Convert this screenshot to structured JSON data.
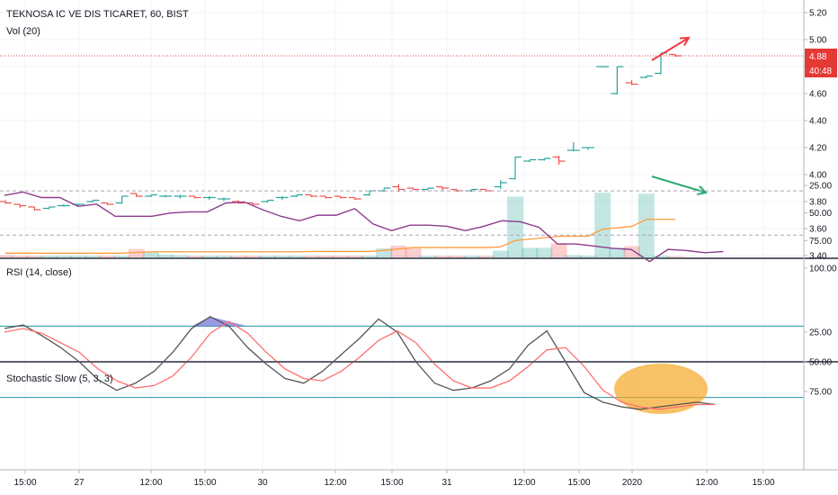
{
  "symbol_title": "TEKNOSA IC VE DIS TICARET, 60, BIST",
  "vol_label": "Vol (20)",
  "rsi_label": "RSI (14, close)",
  "stoch_label": "Stochastic Slow (5, 3, 3)",
  "last_price_tag": "4.88",
  "countdown_tag": "40:48",
  "colors": {
    "up": "#26a69a",
    "down": "#ef5350",
    "rsi_line": "#8e3c8e",
    "rsi_band": "#f3e5f8",
    "stoch_k": "#555555",
    "stoch_d": "#ff6f6f",
    "stoch_level": "#2196a6",
    "vol_ma": "#ff9c3a",
    "price_line": "#e53935",
    "annot_red": "#f03a45",
    "annot_green": "#2eaa6e",
    "highlight": "#f6a623"
  },
  "chart_data": [
    {
      "type": "candlestick",
      "title": "TEKNOSA IC VE DIS TICARET, 60, BIST",
      "ylim": [
        3.4,
        5.25
      ],
      "y_ticks": [
        "5.20",
        "5.00",
        "4.80",
        "4.60",
        "4.40",
        "4.20",
        "4.00",
        "3.80",
        "3.60",
        "3.40"
      ],
      "x_ticks": [
        "15:00",
        "27",
        "12:00",
        "15:00",
        "30",
        "12:00",
        "15:00",
        "31",
        "12:00",
        "15:00",
        "2020",
        "12:00",
        "15:00"
      ],
      "ohlc": [
        [
          3.8,
          3.81,
          3.79,
          3.79
        ],
        [
          3.78,
          3.78,
          3.76,
          3.77
        ],
        [
          3.76,
          3.76,
          3.74,
          3.74
        ],
        [
          3.75,
          3.76,
          3.75,
          3.76
        ],
        [
          3.77,
          3.78,
          3.77,
          3.77
        ],
        [
          3.78,
          3.78,
          3.77,
          3.78
        ],
        [
          3.8,
          3.81,
          3.8,
          3.81
        ],
        [
          3.79,
          3.79,
          3.78,
          3.78
        ],
        [
          3.79,
          3.84,
          3.79,
          3.84
        ],
        [
          3.86,
          3.86,
          3.84,
          3.84
        ],
        [
          3.84,
          3.85,
          3.84,
          3.85
        ],
        [
          3.84,
          3.85,
          3.84,
          3.84
        ],
        [
          3.84,
          3.85,
          3.83,
          3.84
        ],
        [
          3.84,
          3.84,
          3.83,
          3.83
        ],
        [
          3.83,
          3.84,
          3.82,
          3.83
        ],
        [
          3.82,
          3.83,
          3.81,
          3.82
        ],
        [
          3.8,
          3.81,
          3.79,
          3.79
        ],
        [
          3.79,
          3.79,
          3.78,
          3.78
        ],
        [
          3.8,
          3.81,
          3.8,
          3.81
        ],
        [
          3.83,
          3.84,
          3.82,
          3.83
        ],
        [
          3.84,
          3.85,
          3.84,
          3.85
        ],
        [
          3.85,
          3.85,
          3.84,
          3.84
        ],
        [
          3.84,
          3.84,
          3.83,
          3.83
        ],
        [
          3.84,
          3.84,
          3.83,
          3.83
        ],
        [
          3.83,
          3.83,
          3.82,
          3.82
        ],
        [
          3.85,
          3.88,
          3.85,
          3.88
        ],
        [
          3.88,
          3.9,
          3.88,
          3.9
        ],
        [
          3.91,
          3.93,
          3.88,
          3.89
        ],
        [
          3.9,
          3.9,
          3.89,
          3.89
        ],
        [
          3.89,
          3.9,
          3.89,
          3.9
        ],
        [
          3.91,
          3.91,
          3.89,
          3.9
        ],
        [
          3.89,
          3.89,
          3.88,
          3.88
        ],
        [
          3.88,
          3.89,
          3.88,
          3.89
        ],
        [
          3.89,
          3.89,
          3.88,
          3.88
        ],
        [
          3.91,
          3.96,
          3.9,
          3.94
        ],
        [
          3.97,
          4.13,
          3.97,
          4.13
        ],
        [
          4.1,
          4.11,
          4.1,
          4.11
        ],
        [
          4.11,
          4.12,
          4.11,
          4.12
        ],
        [
          4.13,
          4.14,
          4.08,
          4.1
        ],
        [
          4.18,
          4.24,
          4.18,
          4.18
        ],
        [
          4.2,
          4.2,
          4.19,
          4.2
        ],
        [
          4.8,
          4.8,
          4.8,
          4.8
        ],
        [
          4.6,
          4.8,
          4.6,
          4.8
        ],
        [
          4.68,
          4.7,
          4.67,
          4.67
        ],
        [
          4.72,
          4.73,
          4.72,
          4.73
        ],
        [
          4.75,
          4.9,
          4.75,
          4.9
        ],
        [
          4.89,
          4.89,
          4.88,
          4.88
        ]
      ],
      "volume": [
        0.4,
        0.3,
        0.3,
        0.3,
        0.3,
        0.3,
        0.3,
        0.3,
        0.3,
        1.5,
        1.0,
        0.5,
        0.4,
        0.3,
        0.3,
        0.3,
        0.3,
        0.3,
        0.3,
        0.3,
        0.3,
        0.3,
        0.3,
        0.3,
        0.3,
        0.3,
        1.6,
        2.1,
        1.6,
        0.3,
        0.3,
        0.3,
        0.3,
        0.3,
        1.2,
        10.8,
        1.7,
        1.7,
        2.5,
        0.4,
        0.3,
        11.5,
        1.7,
        2.0,
        11.3,
        0.3,
        0.2
      ],
      "volume_ma": [
        0.3,
        0.3,
        0.3,
        0.3,
        0.3,
        0.3,
        0.3,
        0.3,
        0.3,
        0.35,
        0.4,
        0.4,
        0.4,
        0.4,
        0.4,
        0.4,
        0.4,
        0.4,
        0.4,
        0.4,
        0.4,
        0.42,
        0.42,
        0.42,
        0.42,
        0.42,
        0.5,
        0.6,
        0.7,
        0.7,
        0.7,
        0.7,
        0.7,
        0.7,
        0.75,
        1.2,
        1.3,
        1.4,
        1.5,
        1.5,
        1.5,
        2.0,
        2.1,
        2.2,
        2.7,
        2.7,
        2.7
      ],
      "last_price": 4.88
    },
    {
      "type": "line",
      "title": "RSI (14, close)",
      "ylim": [
        20,
        100
      ],
      "y_ticks": [
        "100.00",
        "75.00",
        "50.00",
        "25.00"
      ],
      "band": [
        30,
        70
      ],
      "values": [
        34,
        31,
        36,
        36,
        44,
        42,
        53,
        53,
        53,
        50,
        49,
        49,
        41,
        40,
        47,
        53,
        57,
        52,
        52,
        46,
        60,
        66,
        61,
        61,
        62,
        66,
        62,
        57,
        58,
        63,
        78,
        78,
        80,
        82,
        83,
        94,
        83,
        84,
        86,
        85
      ]
    },
    {
      "type": "line",
      "title": "Stochastic Slow (5, 3, 3)",
      "ylim": [
        5,
        103
      ],
      "y_ticks": [
        "75.00",
        "50.00",
        "25.00"
      ],
      "levels": [
        80,
        20
      ],
      "series": [
        {
          "name": "%K",
          "values": [
            22,
            19,
            28,
            38,
            50,
            65,
            74,
            68,
            58,
            42,
            22,
            12,
            20,
            38,
            52,
            64,
            68,
            58,
            44,
            30,
            14,
            25,
            50,
            68,
            74,
            72,
            66,
            56,
            36,
            24,
            50,
            76,
            84,
            88,
            90,
            88,
            86,
            84,
            86
          ]
        },
        {
          "name": "%D",
          "values": [
            25,
            22,
            26,
            34,
            42,
            56,
            66,
            72,
            70,
            62,
            46,
            26,
            16,
            26,
            42,
            56,
            64,
            66,
            58,
            46,
            32,
            24,
            34,
            52,
            66,
            72,
            72,
            66,
            54,
            40,
            38,
            54,
            74,
            84,
            88,
            90,
            88,
            86,
            86
          ]
        }
      ]
    }
  ]
}
